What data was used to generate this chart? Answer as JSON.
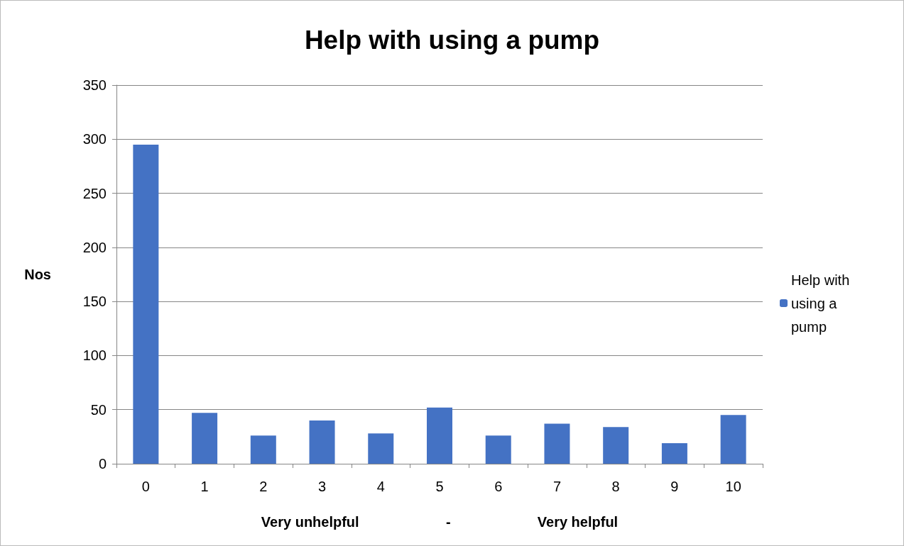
{
  "chart_data": {
    "type": "bar",
    "title": "Help with using a pump",
    "xlabel": "Very unhelpful                      -                      Very helpful",
    "ylabel": "Nos",
    "categories": [
      "0",
      "1",
      "2",
      "3",
      "4",
      "5",
      "6",
      "7",
      "8",
      "9",
      "10"
    ],
    "series": [
      {
        "name": "Help with using a pump",
        "color": "#4472c4",
        "values": [
          295,
          47,
          26,
          40,
          28,
          52,
          26,
          37,
          34,
          19,
          45
        ]
      }
    ],
    "ylim": [
      0,
      350
    ],
    "yticks": [
      0,
      50,
      100,
      150,
      200,
      250,
      300,
      350
    ],
    "grid": "y",
    "legend": "right"
  }
}
